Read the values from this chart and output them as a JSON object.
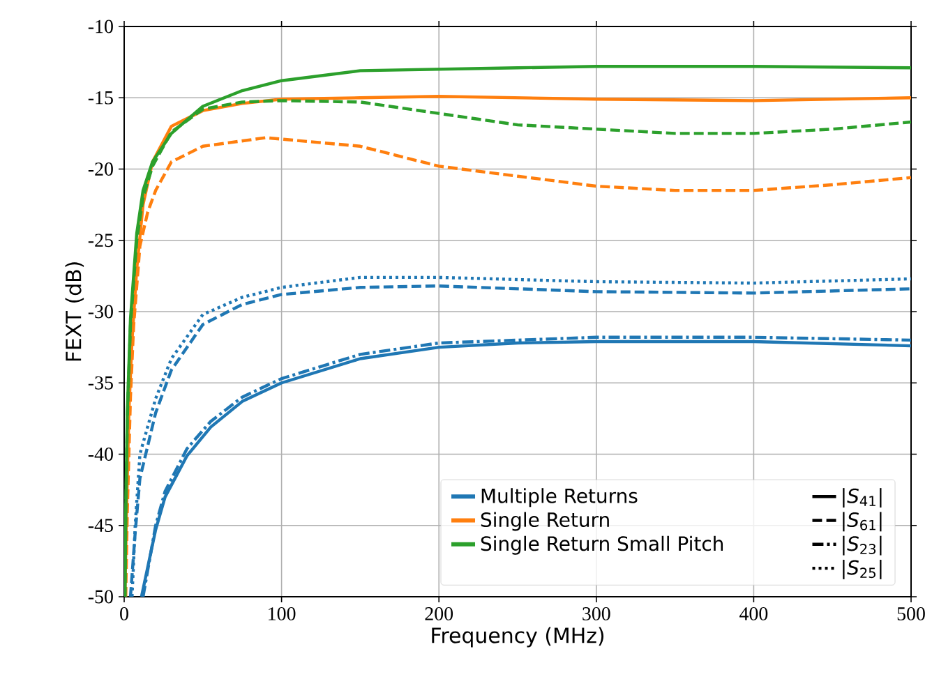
{
  "chart_data": {
    "type": "line",
    "xlabel": "Frequency (MHz)",
    "ylabel": "FEXT (dB)",
    "xlim": [
      0,
      500
    ],
    "ylim": [
      -50,
      -10
    ],
    "xticks": [
      0,
      100,
      200,
      300,
      400,
      500
    ],
    "yticks": [
      -50,
      -45,
      -40,
      -35,
      -30,
      -25,
      -20,
      -15,
      -10
    ],
    "grid": true,
    "legend": "bottom right",
    "annotations": [
      "|*S*$_{41}$|",
      "|*S*$_{61}$|",
      "|*S*$_{23}$|",
      "|*S*$_{25}$|"
    ],
    "series": [
      {
        "name": "Multiple Returns",
        "color": "#1f77b4",
        "line_style": "solid",
        "x": [
          11,
          20,
          26,
          40,
          55,
          75,
          100,
          150,
          200,
          250,
          300,
          400,
          500
        ],
        "values": [
          -50,
          -45.3,
          -43,
          -40.1,
          -38.1,
          -36.3,
          -35,
          -33.3,
          -32.5,
          -32.2,
          -32.1,
          -32.1,
          -32.4
        ]
      },
      {
        "color": "#1f77b4",
        "line_style": "dashed",
        "x": [
          4,
          7,
          10,
          20,
          30,
          50,
          75,
          100,
          150,
          200,
          300,
          400,
          500
        ],
        "values": [
          -50,
          -45.5,
          -41.7,
          -37.1,
          -34.1,
          -30.9,
          -29.5,
          -28.8,
          -28.3,
          -28.2,
          -28.6,
          -28.7,
          -28.4
        ]
      },
      {
        "color": "#1f77b4",
        "line_style": "dashdot",
        "x": [
          12,
          20,
          26,
          40,
          55,
          75,
          100,
          150,
          200,
          300,
          400,
          500
        ],
        "values": [
          -50,
          -45,
          -42.6,
          -39.6,
          -37.7,
          -36,
          -34.7,
          -33,
          -32.2,
          -31.8,
          -31.8,
          -32
        ]
      },
      {
        "color": "#1f77b4",
        "line_style": "dotted",
        "x": [
          5,
          7,
          10,
          20,
          30,
          50,
          75,
          100,
          150,
          200,
          300,
          400,
          500
        ],
        "values": [
          -50,
          -45,
          -40,
          -36.1,
          -33.3,
          -30.2,
          -29,
          -28.3,
          -27.6,
          -27.6,
          -27.9,
          -28,
          -27.7
        ]
      },
      {
        "name": "Single Return",
        "color": "#ff7f0e",
        "line_style": "solid",
        "x": [
          0.5,
          1.5,
          3,
          5,
          8,
          12,
          18,
          30,
          50,
          75,
          100,
          150,
          200,
          300,
          400,
          500
        ],
        "values": [
          -50,
          -44,
          -37,
          -32,
          -27,
          -22.5,
          -19.5,
          -17,
          -15.9,
          -15.4,
          -15.1,
          -15,
          -14.9,
          -15.1,
          -15.2,
          -15
        ]
      },
      {
        "color": "#ff7f0e",
        "line_style": "dashed",
        "x": [
          1,
          2,
          4,
          6,
          10,
          15,
          20,
          30,
          50,
          90,
          150,
          200,
          250,
          300,
          350,
          400,
          450,
          500
        ],
        "values": [
          -50,
          -44,
          -36,
          -31,
          -25.4,
          -23,
          -21.5,
          -19.5,
          -18.4,
          -17.8,
          -18.4,
          -19.8,
          -20.5,
          -21.2,
          -21.5,
          -21.5,
          -21.1,
          -20.6
        ]
      },
      {
        "name": "Single Return Small Pitch",
        "color": "#2ca02c",
        "line_style": "solid",
        "x": [
          0.5,
          1,
          2,
          4,
          8,
          12,
          18,
          30,
          50,
          75,
          100,
          150,
          200,
          250,
          300,
          400,
          500
        ],
        "values": [
          -50,
          -44,
          -37,
          -30.5,
          -24.5,
          -21.5,
          -19.5,
          -17.5,
          -15.6,
          -14.5,
          -13.8,
          -13.1,
          -13,
          -12.9,
          -12.8,
          -12.8,
          -12.9
        ]
      },
      {
        "color": "#2ca02c",
        "line_style": "dashed",
        "x": [
          0.5,
          1,
          2,
          4,
          8,
          12,
          18,
          30,
          50,
          75,
          100,
          150,
          200,
          250,
          300,
          350,
          400,
          450,
          500
        ],
        "values": [
          -50,
          -44.5,
          -37.5,
          -31,
          -25,
          -22,
          -19.8,
          -17.4,
          -15.8,
          -15.3,
          -15.2,
          -15.3,
          -16.1,
          -16.9,
          -17.2,
          -17.5,
          -17.5,
          -17.2,
          -16.7
        ]
      }
    ]
  }
}
